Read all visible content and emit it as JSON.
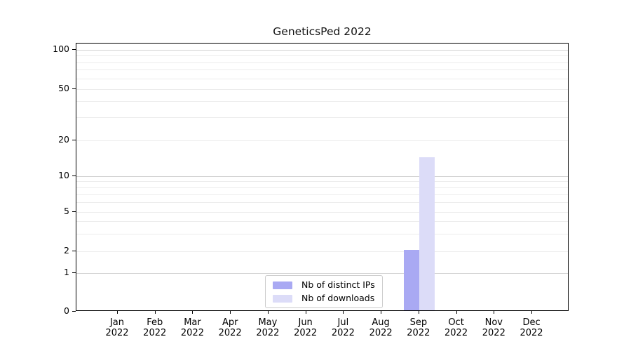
{
  "title": "GeneticsPed 2022",
  "chart_data": {
    "type": "bar",
    "title": "GeneticsPed 2022",
    "categories": [
      "Jan",
      "Feb",
      "Mar",
      "Apr",
      "May",
      "Jun",
      "Jul",
      "Aug",
      "Sep",
      "Oct",
      "Nov",
      "Dec"
    ],
    "category_year": "2022",
    "series": [
      {
        "name": "Nb of distinct IPs",
        "color": "#a9a9f3",
        "values": [
          0,
          0,
          0,
          0,
          0,
          0,
          0,
          0,
          2,
          0,
          0,
          0
        ]
      },
      {
        "name": "Nb of downloads",
        "color": "#dcdcf8",
        "values": [
          0,
          0,
          0,
          0,
          0,
          0,
          0,
          0,
          14,
          0,
          0,
          0
        ]
      }
    ],
    "xlabel": "",
    "ylabel": "",
    "y_ticks": [
      0,
      1,
      2,
      5,
      10,
      20,
      50,
      100
    ],
    "y_decade_gridlines": [
      1,
      10,
      100
    ],
    "y_minor_gridlines": [
      2,
      3,
      4,
      5,
      6,
      7,
      8,
      9,
      20,
      30,
      40,
      50,
      60,
      70,
      80,
      90
    ],
    "ylim": [
      0,
      130
    ],
    "scale": "pseudo-log",
    "grid": true,
    "legend_position": "lower center"
  },
  "colors": {
    "major_grid": "#d2d2d2",
    "minor_grid": "#ececec",
    "spine": "#000000",
    "background": "#ffffff"
  }
}
